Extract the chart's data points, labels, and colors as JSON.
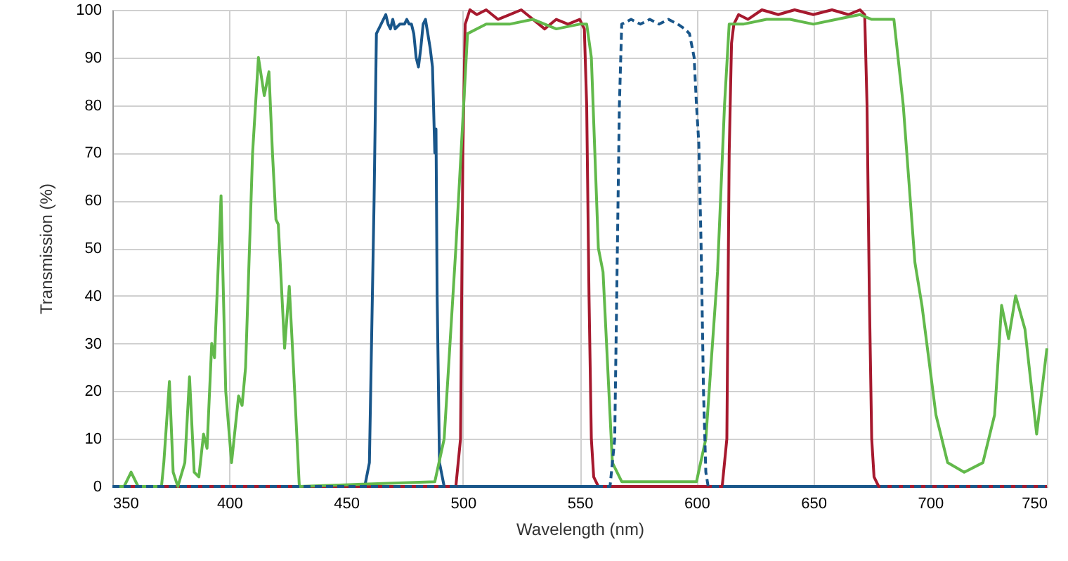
{
  "chart_data": {
    "type": "line",
    "xlabel": "Wavelength (nm)",
    "ylabel": "Transmission (%)",
    "xlim": [
      350,
      750
    ],
    "xticks": [
      350,
      400,
      450,
      500,
      550,
      600,
      650,
      700,
      750
    ],
    "ylim": [
      0,
      100
    ],
    "yticks": [
      0,
      10,
      20,
      30,
      40,
      50,
      60,
      70,
      80,
      90,
      100
    ],
    "grid": true,
    "marker": "none",
    "series": [
      {
        "color": "#19568a",
        "line_style": "solid",
        "x": [
          350,
          458,
          460,
          462,
          463,
          465,
          467,
          468,
          469,
          470,
          471,
          473,
          475,
          476,
          477,
          478,
          479,
          480,
          481,
          482,
          483,
          484,
          485,
          486,
          487,
          488,
          488.5,
          489,
          490,
          492,
          750
        ],
        "values": [
          0,
          0,
          5,
          60,
          95,
          97,
          99,
          97,
          96,
          98,
          96,
          97,
          97,
          98,
          97,
          97,
          95,
          90,
          88,
          92,
          97,
          98,
          95,
          92,
          88,
          70,
          75,
          40,
          5,
          0,
          0
        ]
      },
      {
        "color": "#19568a",
        "line_style": "dashed",
        "x": [
          350,
          563,
          565,
          567,
          568,
          572,
          576,
          580,
          584,
          588,
          592,
          595,
          597,
          599,
          600,
          601,
          602,
          603,
          604,
          605,
          750
        ],
        "values": [
          0,
          0,
          10,
          80,
          97,
          98,
          97,
          98,
          97,
          98,
          97,
          96,
          95,
          90,
          80,
          72,
          50,
          20,
          3,
          0,
          0
        ]
      },
      {
        "color": "#a6192e",
        "line_style": "solid",
        "x": [
          350,
          497,
          499,
          500,
          501,
          503,
          506,
          510,
          515,
          520,
          525,
          530,
          535,
          540,
          545,
          550,
          552,
          553,
          554,
          555,
          556,
          558,
          611,
          613,
          614,
          615,
          616,
          618,
          622,
          628,
          635,
          642,
          650,
          658,
          665,
          670,
          672,
          673,
          674,
          675,
          676,
          678,
          750
        ],
        "values": [
          0,
          0,
          10,
          70,
          97,
          100,
          99,
          100,
          98,
          99,
          100,
          98,
          96,
          98,
          97,
          98,
          96,
          80,
          40,
          10,
          2,
          0,
          0,
          10,
          70,
          93,
          97,
          99,
          98,
          100,
          99,
          100,
          99,
          100,
          99,
          100,
          99,
          80,
          40,
          10,
          2,
          0,
          0
        ]
      },
      {
        "color": "#62b94b",
        "line_style": "solid",
        "x": [
          350,
          355,
          358,
          361,
          371,
          372,
          374.4,
          376,
          378,
          381,
          383,
          385,
          387,
          389,
          390.5,
          392.5,
          393.7,
          396.5,
          398.5,
          401,
          404,
          405.5,
          407,
          410,
          412.5,
          415,
          417,
          418.5,
          420,
          421,
          423.7,
          425.7,
          427.5,
          430,
          488,
          492,
          497,
          502,
          510,
          520,
          530,
          540,
          550,
          553,
          555,
          558,
          560,
          564,
          568,
          600,
          604,
          609,
          612,
          614,
          620,
          630,
          640,
          650,
          660,
          670,
          675,
          680,
          684.5,
          688.5,
          693.5,
          696.5,
          702.5,
          707.5,
          714.6,
          722.6,
          727.6,
          730.6,
          733.6,
          736.6,
          740.6,
          745.6,
          750
        ],
        "values": [
          0,
          0,
          3,
          0,
          0,
          5,
          22,
          3,
          0,
          5,
          23,
          3,
          2,
          11,
          8,
          30,
          27,
          61,
          20,
          5,
          19,
          17,
          25,
          70,
          90,
          82,
          87,
          70,
          56,
          55,
          29,
          42,
          25,
          0,
          1,
          10,
          50,
          95,
          97,
          97,
          98,
          96,
          97,
          97,
          90,
          50,
          45,
          5,
          1,
          1,
          10,
          45,
          80,
          97,
          97,
          98,
          98,
          97,
          98,
          99,
          98,
          98,
          98,
          80,
          47,
          38,
          15,
          5,
          3,
          5,
          15,
          38,
          31,
          40,
          33,
          11,
          29
        ]
      }
    ]
  }
}
